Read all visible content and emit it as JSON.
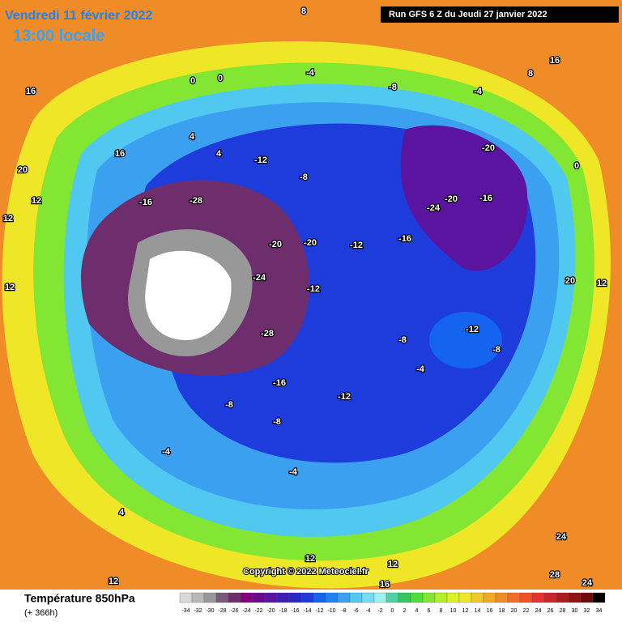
{
  "header": {
    "date": "Vendredi 11 février 2022",
    "time": "13:00 locale",
    "run": "Run GFS 6 Z du Jeudi 27 janvier 2022"
  },
  "copyright": "Copyright © 2022 Meteociel.fr",
  "footer": {
    "title": "Température 850hPa",
    "lead": "(+ 366h)"
  },
  "legend": {
    "ticks": [
      -34,
      -32,
      -30,
      -28,
      -26,
      -24,
      -22,
      -20,
      -18,
      -16,
      -14,
      -12,
      -10,
      -8,
      -6,
      -4,
      -2,
      0,
      2,
      4,
      6,
      8,
      10,
      12,
      14,
      16,
      18,
      20,
      22,
      24,
      26,
      28,
      30,
      32,
      34
    ],
    "colors": [
      "#d8d8d8",
      "#b8b8b8",
      "#989898",
      "#7a5a7a",
      "#6e2e6e",
      "#800080",
      "#6a0a8a",
      "#5a14a0",
      "#3c1eb4",
      "#2828c8",
      "#1e3cdc",
      "#1464f0",
      "#1e82f0",
      "#3ca0f0",
      "#50c8f0",
      "#78dcf0",
      "#a0f0f0",
      "#50d2a0",
      "#32c85a",
      "#50dc3c",
      "#82e632",
      "#b4f028",
      "#dcf028",
      "#f0e628",
      "#f0c828",
      "#f0aa28",
      "#f08c28",
      "#f06e28",
      "#f05028",
      "#e63232",
      "#c82828",
      "#aa1e1e",
      "#8c1414",
      "#6e0a0a",
      "#000000"
    ]
  },
  "map_labels": [
    8,
    16,
    16,
    20,
    12,
    12,
    4,
    4,
    0,
    0,
    -4,
    -8,
    -4,
    8,
    16,
    0,
    -8,
    -12,
    -16,
    -28,
    -20,
    -20,
    -24,
    -12,
    -12,
    -16,
    -20,
    -24,
    -16,
    -20,
    -12,
    -8,
    -8,
    -4,
    -12,
    -16,
    -28,
    -8,
    -8,
    -4,
    12,
    16,
    12,
    20,
    12,
    24,
    28,
    24,
    -4,
    4,
    12,
    12
  ]
}
